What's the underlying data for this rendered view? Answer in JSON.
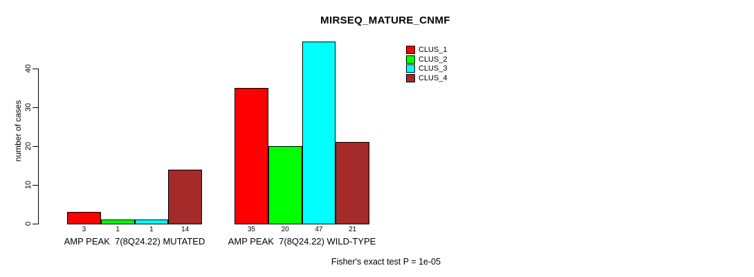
{
  "chart_data": {
    "type": "bar",
    "title": "MIRSEQ_MATURE_CNMF",
    "xlabel": "",
    "ylabel": "number of cases",
    "categories": [
      "AMP PEAK  7(8Q24.22) MUTATED",
      "AMP PEAK  7(8Q24.22) WILD-TYPE"
    ],
    "category_keys": [
      "mutated",
      "wild-type"
    ],
    "series": [
      {
        "name": "CLUS_1",
        "color": "#ff0000",
        "values": [
          3,
          35
        ]
      },
      {
        "name": "CLUS_2",
        "color": "#00ff00",
        "values": [
          1,
          20
        ]
      },
      {
        "name": "CLUS_3",
        "color": "#00ffff",
        "values": [
          1,
          47
        ]
      },
      {
        "name": "CLUS_4",
        "color": "#a52a2a",
        "values": [
          14,
          21
        ]
      }
    ],
    "yticks": [
      0,
      10,
      20,
      30,
      40
    ],
    "ylim": [
      0,
      47
    ],
    "grid": false,
    "legend_position": "top-right",
    "bar_borders_color": "#000000",
    "annotation": "Fisher's exact test P = 1e-05"
  }
}
